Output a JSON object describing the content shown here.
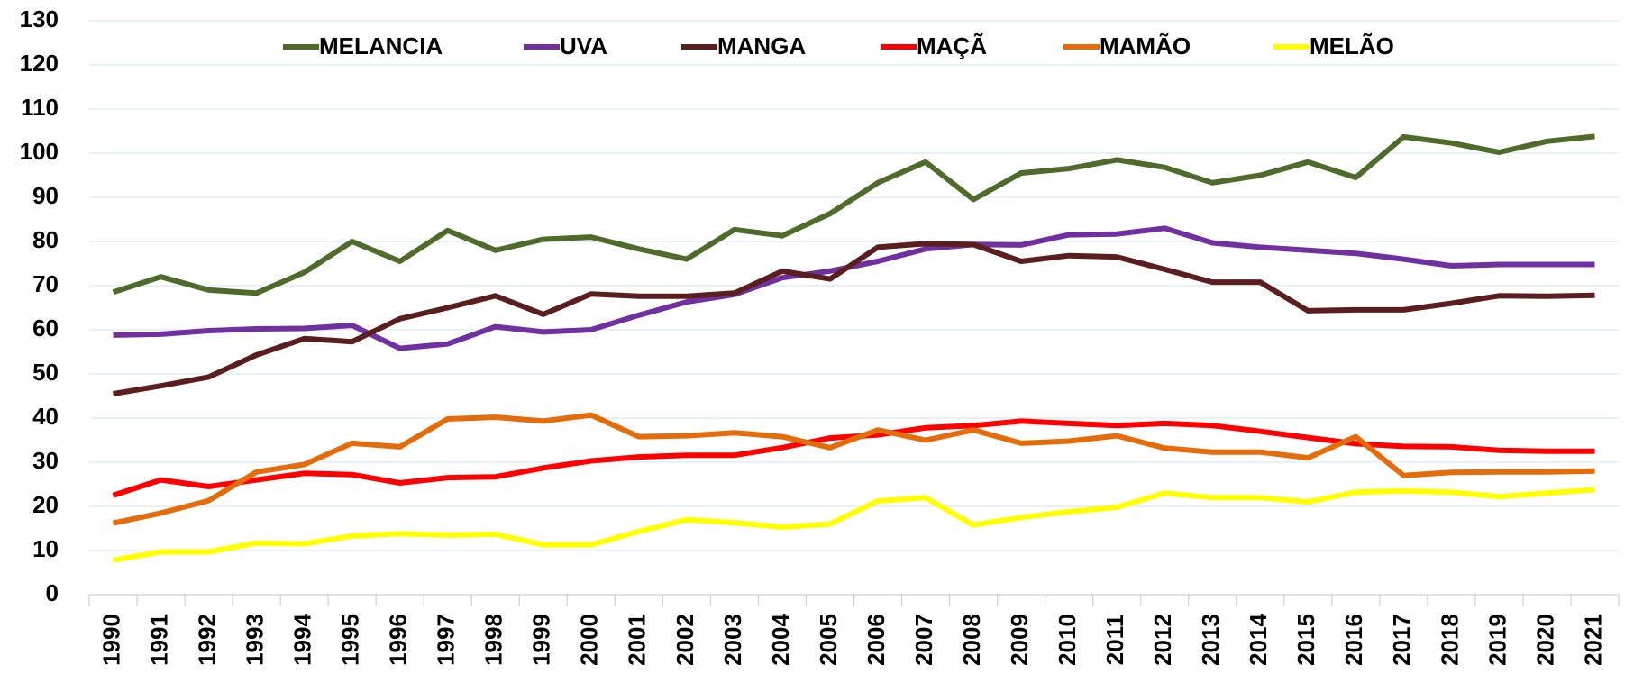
{
  "chart_data": {
    "type": "line",
    "categories": [
      "1990",
      "1991",
      "1992",
      "1993",
      "1994",
      "1995",
      "1996",
      "1997",
      "1998",
      "1999",
      "2000",
      "2001",
      "2002",
      "2003",
      "2004",
      "2005",
      "2006",
      "2007",
      "2008",
      "2009",
      "2010",
      "2011",
      "2012",
      "2013",
      "2014",
      "2015",
      "2016",
      "2017",
      "2018",
      "2019",
      "2020",
      "2021"
    ],
    "series": [
      {
        "name": "MELANCIA",
        "color": "#4f6b2b",
        "values": [
          68.5,
          72,
          69,
          68.3,
          73,
          80,
          75.5,
          82.5,
          78,
          80.5,
          81,
          78.3,
          76,
          82.7,
          81.3,
          86.3,
          93.3,
          98,
          89.5,
          95.5,
          96.5,
          98.5,
          96.8,
          93.3,
          95,
          98,
          94.5,
          103.7,
          102.3,
          100.2,
          102.7,
          103.8
        ]
      },
      {
        "name": "UVA",
        "color": "#7030a0",
        "values": [
          58.8,
          59,
          59.8,
          60.2,
          60.3,
          61,
          55.8,
          56.8,
          60.7,
          59.5,
          60,
          63.3,
          66.3,
          68,
          71.8,
          73.3,
          75.5,
          78.3,
          79.3,
          79.2,
          81.5,
          81.7,
          83,
          79.7,
          78.7,
          78,
          77.3,
          76,
          74.5,
          74.8,
          74.8,
          74.8
        ]
      },
      {
        "name": "MANGA",
        "color": "#5a1e1e",
        "values": [
          45.5,
          47.3,
          49.3,
          54.3,
          58,
          57.3,
          62.5,
          65,
          67.7,
          63.5,
          68.1,
          67.6,
          67.6,
          68.3,
          73.3,
          71.5,
          78.7,
          79.5,
          79.3,
          75.5,
          76.8,
          76.5,
          73.7,
          70.8,
          70.8,
          64.3,
          64.5,
          64.5,
          66,
          67.7,
          67.6,
          67.8
        ]
      },
      {
        "name": "MAÇÃ",
        "color": "#ff0000",
        "values": [
          22.5,
          26,
          24.5,
          26,
          27.5,
          27.2,
          25.3,
          26.5,
          26.7,
          28.7,
          30.3,
          31.2,
          31.6,
          31.6,
          33.3,
          35.5,
          36.2,
          37.8,
          38.3,
          39.3,
          38.8,
          38.3,
          38.8,
          38.3,
          37,
          35.6,
          34.2,
          33.6,
          33.5,
          32.7,
          32.5,
          32.5
        ]
      },
      {
        "name": "MAMÃO",
        "color": "#e46c0a",
        "values": [
          16.2,
          18.5,
          21.3,
          27.8,
          29.5,
          34.3,
          33.5,
          39.8,
          40.2,
          39.3,
          40.7,
          35.8,
          36,
          36.7,
          35.8,
          33.3,
          37.3,
          35,
          37.3,
          34.3,
          34.8,
          36,
          33.2,
          32.3,
          32.3,
          31,
          35.8,
          27,
          27.7,
          27.8,
          27.8,
          28
        ]
      },
      {
        "name": "MELÃO",
        "color": "#ffff00",
        "values": [
          7.8,
          9.7,
          9.7,
          11.7,
          11.5,
          13.3,
          13.8,
          13.5,
          13.7,
          11.3,
          11.3,
          14.3,
          17,
          16.3,
          15.3,
          16,
          21.2,
          22,
          15.8,
          17.5,
          18.8,
          19.8,
          23,
          22,
          22,
          21,
          23.2,
          23.5,
          23.2,
          22.2,
          23,
          23.8
        ]
      }
    ],
    "ylim": [
      0,
      130
    ],
    "yticks": [
      0,
      10,
      20,
      30,
      40,
      50,
      60,
      70,
      80,
      90,
      100,
      110,
      120,
      130
    ],
    "grid": true,
    "legend": "top"
  }
}
